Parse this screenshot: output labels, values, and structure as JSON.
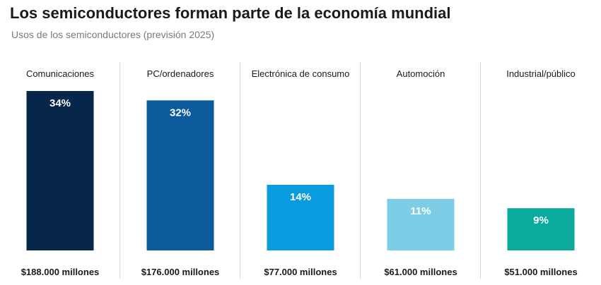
{
  "header": {
    "title": "Los semiconductores forman parte de la economía mundial",
    "subtitle": "Usos de los semiconductores (previsión 2025)"
  },
  "chart_data": {
    "type": "bar",
    "title": "Los semiconductores forman parte de la economía mundial",
    "subtitle": "Usos de los semiconductores (previsión 2025)",
    "categories": [
      "Comunicaciones",
      "PC/ordenadores",
      "Electrónica de consumo",
      "Automoción",
      "Industrial/público"
    ],
    "values": [
      34,
      32,
      14,
      11,
      9
    ],
    "value_labels": [
      "34%",
      "32%",
      "14%",
      "11%",
      "9%"
    ],
    "amounts": [
      "$188.000 millones",
      "$176.000 millones",
      "$77.000 millones",
      "$61.000 millones",
      "$51.000 millones"
    ],
    "colors": [
      "#06264a",
      "#0b5a9c",
      "#0a9ade",
      "#7dcde6",
      "#0aaa9c"
    ],
    "separator_color": "#d8d8d8",
    "ylim": [
      0,
      34
    ],
    "grid": false,
    "legend": "none"
  }
}
